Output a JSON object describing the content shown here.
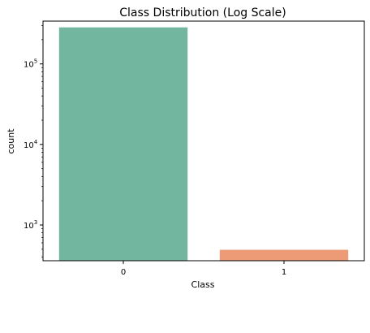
{
  "chart_data": {
    "type": "bar",
    "title": "Class Distribution (Log Scale)",
    "xlabel": "Class",
    "ylabel": "count",
    "categories": [
      "0",
      "1"
    ],
    "values": [
      284315,
      492
    ],
    "colors": [
      "#72b6a0",
      "#ec9b76"
    ],
    "yscale": "log",
    "ylim": [
      360,
      340000
    ],
    "yticks": [
      1000,
      10000,
      100000
    ],
    "ytick_labels": [
      {
        "base": "10",
        "exp": "3"
      },
      {
        "base": "10",
        "exp": "4"
      },
      {
        "base": "10",
        "exp": "5"
      }
    ],
    "grid": false,
    "legend": "none"
  }
}
